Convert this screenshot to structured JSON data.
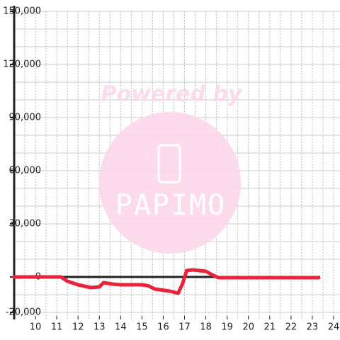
{
  "chart_data": {
    "type": "line",
    "watermark": {
      "title": "Powered by",
      "brand": "PAPIMO"
    },
    "x": [
      9,
      11.2,
      11.5,
      12,
      12.6,
      13,
      13.2,
      13.6,
      14,
      15,
      15.3,
      15.6,
      16.3,
      16.7,
      16.9,
      17.1,
      17.4,
      18,
      18.3,
      18.6,
      19,
      20,
      21,
      23.3
    ],
    "series": [
      {
        "color": "#e8233a",
        "values": [
          0,
          0,
          -2400,
          -4400,
          -6000,
          -5600,
          -3200,
          -4000,
          -4400,
          -4400,
          -5000,
          -6800,
          -8000,
          -9200,
          -4000,
          3600,
          4000,
          3200,
          1200,
          -400,
          -400,
          -400,
          -400,
          -400
        ]
      }
    ],
    "xlim": [
      9,
      24.3
    ],
    "xticks": [
      10,
      11,
      12,
      13,
      14,
      15,
      16,
      17,
      18,
      19,
      20,
      21,
      22,
      23,
      24
    ],
    "xgrid": [
      9.5,
      10,
      10.5,
      11,
      11.5,
      12,
      12.5,
      13,
      13.5,
      14,
      14.5,
      15,
      15.5,
      16,
      16.5,
      17,
      17.5,
      18,
      18.5,
      19,
      19.5,
      20,
      20.5,
      21,
      21.5,
      22,
      22.5,
      23,
      23.5,
      24
    ],
    "ylim": [
      -24000,
      150000
    ],
    "yticks": [
      {
        "value": -20000,
        "label": "-20,000"
      },
      0,
      {
        "value": 30000,
        "label": "30,000"
      },
      {
        "value": 60000,
        "label": "60,000"
      },
      {
        "value": 90000,
        "label": "90,000"
      },
      {
        "value": 120000,
        "label": "120,000"
      },
      {
        "value": 150000,
        "label": "150,000"
      }
    ],
    "ygrid": [
      -20000,
      -10000,
      10000,
      20000,
      30000,
      40000,
      50000,
      60000,
      70000,
      80000,
      90000,
      100000,
      110000,
      120000,
      130000,
      140000,
      150000
    ],
    "grid": true
  }
}
